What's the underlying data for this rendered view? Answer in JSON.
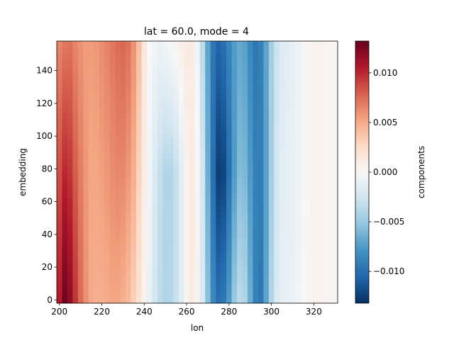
{
  "chart_data": {
    "type": "heatmap",
    "title": "lat = 60.0, mode = 4",
    "xlabel": "lon",
    "ylabel": "embedding",
    "xlim": [
      198.75,
      331.25
    ],
    "ylim": [
      -2,
      158
    ],
    "x_ticks": [
      200,
      220,
      240,
      260,
      280,
      300,
      320
    ],
    "y_ticks": [
      0,
      20,
      40,
      60,
      80,
      100,
      120,
      140
    ],
    "x_ticks_text": [
      "200",
      "220",
      "240",
      "260",
      "280",
      "300",
      "320"
    ],
    "y_ticks_text": [
      "0",
      "20",
      "40",
      "60",
      "80",
      "100",
      "120",
      "140"
    ],
    "lon_start": 200,
    "lon_step": 2.5,
    "embedding_start": 0,
    "embedding_step": 4,
    "embedding_count": 40,
    "colorbar": {
      "label": "components",
      "cmap": "RdBu_r",
      "vmin": -0.0132,
      "vmax": 0.0132,
      "ticks": [
        0.01,
        0.005,
        0.0,
        -0.005,
        -0.01
      ],
      "ticks_text": [
        "0.010",
        "0.005",
        "0.000",
        "−0.005",
        "−0.010"
      ]
    },
    "column_profiles": [
      {
        "lon": 200.0,
        "bottom": 0.0105,
        "middle": 0.0085,
        "top": 0.0065
      },
      {
        "lon": 202.5,
        "bottom": 0.0128,
        "middle": 0.01,
        "top": 0.007
      },
      {
        "lon": 205.0,
        "bottom": 0.0118,
        "middle": 0.0095,
        "top": 0.0072
      },
      {
        "lon": 207.5,
        "bottom": 0.0095,
        "middle": 0.008,
        "top": 0.0065
      },
      {
        "lon": 210.0,
        "bottom": 0.0075,
        "middle": 0.0068,
        "top": 0.006
      },
      {
        "lon": 212.5,
        "bottom": 0.006,
        "middle": 0.0058,
        "top": 0.0056
      },
      {
        "lon": 215.0,
        "bottom": 0.005,
        "middle": 0.0052,
        "top": 0.0056
      },
      {
        "lon": 217.5,
        "bottom": 0.0048,
        "middle": 0.0052,
        "top": 0.0058
      },
      {
        "lon": 220.0,
        "bottom": 0.0048,
        "middle": 0.0055,
        "top": 0.0062
      },
      {
        "lon": 222.5,
        "bottom": 0.005,
        "middle": 0.0058,
        "top": 0.0066
      },
      {
        "lon": 225.0,
        "bottom": 0.0052,
        "middle": 0.0062,
        "top": 0.007
      },
      {
        "lon": 227.5,
        "bottom": 0.0052,
        "middle": 0.0064,
        "top": 0.0074
      },
      {
        "lon": 230.0,
        "bottom": 0.0048,
        "middle": 0.0064,
        "top": 0.0076
      },
      {
        "lon": 232.5,
        "bottom": 0.0042,
        "middle": 0.0058,
        "top": 0.0072
      },
      {
        "lon": 235.0,
        "bottom": 0.0032,
        "middle": 0.0048,
        "top": 0.006
      },
      {
        "lon": 237.5,
        "bottom": 0.002,
        "middle": 0.003,
        "top": 0.004
      },
      {
        "lon": 240.0,
        "bottom": 0.0005,
        "middle": 0.001,
        "top": 0.0015
      },
      {
        "lon": 242.5,
        "bottom": -0.001,
        "middle": -0.0005,
        "top": 0.0
      },
      {
        "lon": 245.0,
        "bottom": -0.0025,
        "middle": -0.002,
        "top": -0.0005
      },
      {
        "lon": 247.5,
        "bottom": -0.0035,
        "middle": -0.0032,
        "top": -0.0008
      },
      {
        "lon": 250.0,
        "bottom": -0.004,
        "middle": -0.004,
        "top": -0.0005
      },
      {
        "lon": 252.5,
        "bottom": -0.0038,
        "middle": -0.004,
        "top": 0.0
      },
      {
        "lon": 255.0,
        "bottom": -0.003,
        "middle": -0.0032,
        "top": 0.0003
      },
      {
        "lon": 257.5,
        "bottom": -0.0015,
        "middle": -0.0015,
        "top": 0.0008
      },
      {
        "lon": 260.0,
        "bottom": 0.0003,
        "middle": 0.0005,
        "top": 0.0012
      },
      {
        "lon": 262.5,
        "bottom": 0.0012,
        "middle": 0.0012,
        "top": 0.001
      },
      {
        "lon": 265.0,
        "bottom": 0.0005,
        "middle": 0.0003,
        "top": -0.0005
      },
      {
        "lon": 267.5,
        "bottom": -0.002,
        "middle": -0.0025,
        "top": -0.0035
      },
      {
        "lon": 270.0,
        "bottom": -0.0055,
        "middle": -0.0065,
        "top": -0.007
      },
      {
        "lon": 272.5,
        "bottom": -0.0085,
        "middle": -0.01,
        "top": -0.0095
      },
      {
        "lon": 275.0,
        "bottom": -0.01,
        "middle": -0.0125,
        "top": -0.0105
      },
      {
        "lon": 277.5,
        "bottom": -0.0095,
        "middle": -0.0122,
        "top": -0.01
      },
      {
        "lon": 280.0,
        "bottom": -0.0075,
        "middle": -0.01,
        "top": -0.0088
      },
      {
        "lon": 282.5,
        "bottom": -0.005,
        "middle": -0.0075,
        "top": -0.0075
      },
      {
        "lon": 285.0,
        "bottom": -0.0035,
        "middle": -0.0058,
        "top": -0.0068
      },
      {
        "lon": 287.5,
        "bottom": -0.004,
        "middle": -0.006,
        "top": -0.0072
      },
      {
        "lon": 290.0,
        "bottom": -0.0065,
        "middle": -0.0075,
        "top": -0.0085
      },
      {
        "lon": 292.5,
        "bottom": -0.009,
        "middle": -0.009,
        "top": -0.0095
      },
      {
        "lon": 295.0,
        "bottom": -0.0095,
        "middle": -0.0092,
        "top": -0.009
      },
      {
        "lon": 297.5,
        "bottom": -0.007,
        "middle": -0.0072,
        "top": -0.007
      },
      {
        "lon": 300.0,
        "bottom": -0.004,
        "middle": -0.0045,
        "top": -0.0045
      },
      {
        "lon": 302.5,
        "bottom": -0.002,
        "middle": -0.0025,
        "top": -0.0028
      },
      {
        "lon": 305.0,
        "bottom": -0.0012,
        "middle": -0.0015,
        "top": -0.0018
      },
      {
        "lon": 307.5,
        "bottom": -0.001,
        "middle": -0.0012,
        "top": -0.0015
      },
      {
        "lon": 310.0,
        "bottom": -0.0008,
        "middle": -0.001,
        "top": -0.0012
      },
      {
        "lon": 312.5,
        "bottom": -0.0005,
        "middle": -0.0006,
        "top": -0.0008
      },
      {
        "lon": 315.0,
        "bottom": 0.0,
        "middle": -0.0002,
        "top": -0.0003
      },
      {
        "lon": 317.5,
        "bottom": 0.0003,
        "middle": 0.0002,
        "top": 0.0002
      },
      {
        "lon": 320.0,
        "bottom": 0.0005,
        "middle": 0.0005,
        "top": 0.0005
      },
      {
        "lon": 322.5,
        "bottom": 0.0005,
        "middle": 0.0005,
        "top": 0.0005
      },
      {
        "lon": 325.0,
        "bottom": 0.0004,
        "middle": 0.0004,
        "top": 0.0004
      },
      {
        "lon": 327.5,
        "bottom": 0.0003,
        "middle": 0.0003,
        "top": 0.0003
      },
      {
        "lon": 330.0,
        "bottom": 0.0003,
        "middle": 0.0003,
        "top": 0.0003
      }
    ]
  }
}
